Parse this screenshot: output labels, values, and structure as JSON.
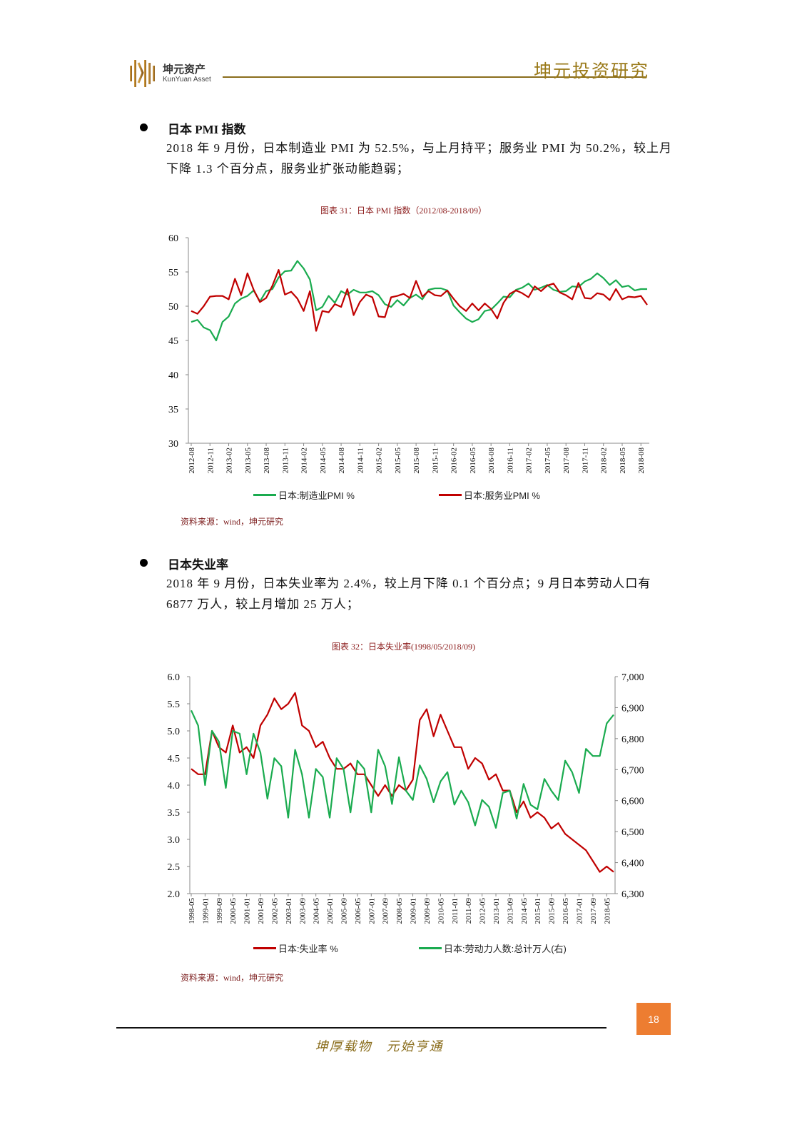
{
  "header": {
    "logo_cn": "坤元资产",
    "logo_en": "KunYuan Asset",
    "title": "坤元投资研究",
    "brand_color": "#8a6d1c"
  },
  "sections": [
    {
      "heading": "日本 PMI 指数",
      "paragraph": "2018 年 9 月份，日本制造业 PMI 为 52.5%，与上月持平；服务业 PMI 为 50.2%，较上月下降 1.3 个百分点，服务业扩张动能趋弱；",
      "caption": "图表 31：日本 PMI 指数（2012/08-2018/09）",
      "source": "资料来源：wind，坤元研究"
    },
    {
      "heading": "日本失业率",
      "paragraph": "2018 年 9 月份，日本失业率为 2.4%，较上月下降 0.1 个百分点；9 月日本劳动人口有 6877 万人，较上月增加 25 万人；",
      "caption": "图表 32：日本失业率(1998/05/2018/09)",
      "source": "资料来源：wind，坤元研究"
    }
  ],
  "chart_data": [
    {
      "type": "line",
      "title": "",
      "ylim": [
        30,
        60
      ],
      "yticks": [
        "30",
        "35",
        "40",
        "45",
        "50",
        "55",
        "60"
      ],
      "xtick_labels": [
        "2012-08",
        "2012-11",
        "2013-02",
        "2013-05",
        "2013-08",
        "2013-11",
        "2014-02",
        "2014-05",
        "2014-08",
        "2014-11",
        "2015-02",
        "2015-05",
        "2015-08",
        "2015-11",
        "2016-02",
        "2016-05",
        "2016-08",
        "2016-11",
        "2017-02",
        "2017-05",
        "2017-08",
        "2017-11",
        "2018-02",
        "2018-05",
        "2018-08"
      ],
      "x_start": "2012-08",
      "x_end": "2018-09",
      "x_frequency": "monthly",
      "grid": false,
      "legend_position": "bottom",
      "series": [
        {
          "name": "日本:制造业PMI %",
          "color": "#1aab4f",
          "values": [
            47.7,
            48.0,
            46.9,
            46.5,
            45.0,
            47.7,
            48.5,
            50.4,
            51.1,
            51.5,
            52.3,
            50.7,
            52.2,
            52.5,
            54.2,
            55.1,
            55.2,
            56.6,
            55.5,
            53.9,
            49.4,
            49.9,
            51.5,
            50.5,
            52.2,
            51.7,
            52.4,
            52.0,
            52.0,
            52.2,
            51.6,
            50.3,
            49.9,
            50.9,
            50.1,
            51.2,
            51.7,
            51.0,
            52.4,
            52.6,
            52.6,
            52.3,
            50.1,
            49.1,
            48.2,
            47.7,
            48.1,
            49.3,
            49.5,
            50.4,
            51.4,
            51.3,
            52.4,
            52.7,
            53.3,
            52.4,
            52.7,
            53.1,
            52.4,
            52.1,
            52.2,
            52.9,
            52.8,
            53.6,
            54.0,
            54.8,
            54.1,
            53.1,
            53.8,
            52.8,
            53.0,
            52.3,
            52.5,
            52.5
          ]
        },
        {
          "name": "日本:服务业PMI %",
          "color": "#c00000",
          "values": [
            49.3,
            48.9,
            50.0,
            51.4,
            51.5,
            51.5,
            51.0,
            54.0,
            51.6,
            54.8,
            52.4,
            50.6,
            51.2,
            53.0,
            55.3,
            51.7,
            52.1,
            51.1,
            49.3,
            52.2,
            46.4,
            49.3,
            49.1,
            50.3,
            49.9,
            52.5,
            48.7,
            50.6,
            51.7,
            51.3,
            48.5,
            48.4,
            51.3,
            51.5,
            51.8,
            51.2,
            53.7,
            51.4,
            52.2,
            51.6,
            51.5,
            52.3,
            51.1,
            50.0,
            49.3,
            50.4,
            49.4,
            50.4,
            49.6,
            48.2,
            50.5,
            51.8,
            52.3,
            51.9,
            51.3,
            52.9,
            52.2,
            53.0,
            53.3,
            52.0,
            51.6,
            51.0,
            53.4,
            51.2,
            51.1,
            51.9,
            51.7,
            50.9,
            52.5,
            51.0,
            51.4,
            51.3,
            51.5,
            50.2
          ]
        }
      ]
    },
    {
      "type": "line",
      "title": "",
      "ylim": [
        2.0,
        6.0
      ],
      "yticks": [
        "2.0",
        "2.5",
        "3.0",
        "3.5",
        "4.0",
        "4.5",
        "5.0",
        "5.5",
        "6.0"
      ],
      "y2lim": [
        6300,
        7000
      ],
      "y2ticks": [
        "6,300",
        "6,400",
        "6,500",
        "6,600",
        "6,700",
        "6,800",
        "6,900",
        "7,000"
      ],
      "xtick_labels": [
        "1998-05",
        "1999-01",
        "1999-09",
        "2000-05",
        "2001-01",
        "2001-09",
        "2002-05",
        "2003-01",
        "2003-09",
        "2004-05",
        "2005-01",
        "2005-09",
        "2006-05",
        "2007-01",
        "2007-09",
        "2008-05",
        "2009-01",
        "2009-09",
        "2010-05",
        "2011-01",
        "2011-09",
        "2012-05",
        "2013-01",
        "2013-09",
        "2014-05",
        "2015-01",
        "2015-09",
        "2016-05",
        "2017-01",
        "2017-09",
        "2018-05"
      ],
      "x_start": "1998-05",
      "x_end": "2018-09",
      "x_sample_step_months": 4,
      "grid": false,
      "legend_position": "bottom",
      "series": [
        {
          "name": "日本:失业率 %",
          "axis": "left",
          "color": "#c00000",
          "values": [
            4.3,
            4.2,
            4.2,
            5.0,
            4.7,
            4.6,
            5.1,
            4.6,
            4.7,
            4.5,
            5.1,
            5.3,
            5.6,
            5.4,
            5.5,
            5.7,
            5.1,
            5.0,
            4.7,
            4.8,
            4.5,
            4.3,
            4.3,
            4.4,
            4.2,
            4.2,
            4.0,
            3.8,
            4.0,
            3.8,
            4.0,
            3.9,
            4.1,
            5.2,
            5.4,
            4.9,
            5.3,
            5.0,
            4.7,
            4.7,
            4.3,
            4.5,
            4.4,
            4.1,
            4.2,
            3.9,
            3.9,
            3.5,
            3.7,
            3.4,
            3.5,
            3.4,
            3.2,
            3.3,
            3.1,
            3.0,
            2.9,
            2.8,
            2.6,
            2.4,
            2.5,
            2.4
          ]
        },
        {
          "name": "日本:劳动力人数:总计万人(右)",
          "axis": "right",
          "color": "#1aab4f",
          "values": [
            6891,
            6842,
            6650,
            6825,
            6790,
            6641,
            6825,
            6816,
            6685,
            6816,
            6755,
            6606,
            6737,
            6711,
            6545,
            6764,
            6685,
            6545,
            6702,
            6676,
            6545,
            6737,
            6702,
            6562,
            6729,
            6702,
            6562,
            6764,
            6711,
            6589,
            6740,
            6632,
            6602,
            6714,
            6670,
            6595,
            6662,
            6692,
            6587,
            6632,
            6595,
            6520,
            6602,
            6580,
            6512,
            6625,
            6632,
            6542,
            6654,
            6587,
            6572,
            6670,
            6632,
            6602,
            6729,
            6692,
            6625,
            6767,
            6744,
            6744,
            6849,
            6877
          ]
        }
      ]
    }
  ],
  "footer": {
    "page_number": "18",
    "slogan": "坤厚载物　元始亨通",
    "page_box_color": "#ED7D31"
  }
}
